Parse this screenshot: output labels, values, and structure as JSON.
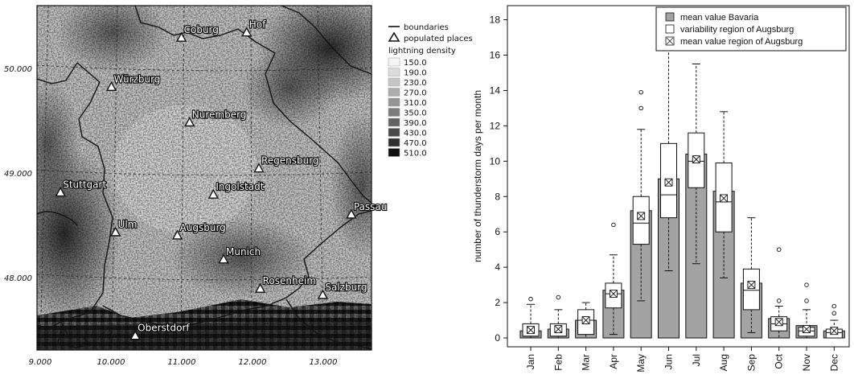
{
  "map": {
    "lon_ticks": [
      "9.000",
      "10.000",
      "11.000",
      "12.000",
      "13.000"
    ],
    "lat_ticks": [
      "50.000",
      "49.000",
      "48.000"
    ],
    "places": [
      {
        "name": "Coburg",
        "lon": 10.96,
        "lat": 50.26
      },
      {
        "name": "Hof",
        "lon": 11.92,
        "lat": 50.31
      },
      {
        "name": "Würzburg",
        "lon": 9.93,
        "lat": 49.79
      },
      {
        "name": "Nuremberg",
        "lon": 11.08,
        "lat": 49.45
      },
      {
        "name": "Regensburg",
        "lon": 12.1,
        "lat": 49.01
      },
      {
        "name": "Stuttgart",
        "lon": 9.18,
        "lat": 48.78
      },
      {
        "name": "Ingolstadt",
        "lon": 11.43,
        "lat": 48.76
      },
      {
        "name": "Passau",
        "lon": 13.46,
        "lat": 48.57
      },
      {
        "name": "Ulm",
        "lon": 9.99,
        "lat": 48.4
      },
      {
        "name": "Augsburg",
        "lon": 10.9,
        "lat": 48.37
      },
      {
        "name": "Munich",
        "lon": 11.58,
        "lat": 48.14
      },
      {
        "name": "Rosenheim",
        "lon": 12.12,
        "lat": 47.86
      },
      {
        "name": "Salzburg",
        "lon": 13.04,
        "lat": 47.8
      },
      {
        "name": "Oberstdorf",
        "lon": 10.28,
        "lat": 47.41
      }
    ],
    "legend": {
      "boundaries": "boundaries",
      "populated": "populated places",
      "density_title": "lightning density",
      "classes": [
        {
          "label": "150.0",
          "color": "#f5f5f5"
        },
        {
          "label": "190.0",
          "color": "#dcdcdc"
        },
        {
          "label": "230.0",
          "color": "#c6c6c6"
        },
        {
          "label": "270.0",
          "color": "#adadad"
        },
        {
          "label": "310.0",
          "color": "#949494"
        },
        {
          "label": "350.0",
          "color": "#7c7c7c"
        },
        {
          "label": "390.0",
          "color": "#626262"
        },
        {
          "label": "430.0",
          "color": "#494949"
        },
        {
          "label": "470.0",
          "color": "#303030"
        },
        {
          "label": "510.0",
          "color": "#101010"
        }
      ]
    }
  },
  "chart_data": {
    "type": "bar",
    "ylabel": "number of thunderstorm days per month",
    "ylim": [
      -0.5,
      18.8
    ],
    "yticks": [
      0,
      2,
      4,
      6,
      8,
      10,
      12,
      14,
      16,
      18
    ],
    "categories": [
      "Jan",
      "Feb",
      "Mar",
      "Apr",
      "May",
      "Jun",
      "Jul",
      "Aug",
      "Sep",
      "Oct",
      "Nov",
      "Dec"
    ],
    "legend": [
      "mean value Bavaria",
      "variability region of Augsburg",
      "mean value region of Augsburg"
    ],
    "legend_position": "top-right",
    "bar_color": "#a3a3a3",
    "series": [
      {
        "name": "mean value Bavaria",
        "values": [
          0.4,
          0.5,
          1.0,
          2.7,
          7.2,
          9.0,
          10.4,
          8.3,
          3.1,
          1.1,
          0.7,
          0.4
        ]
      },
      {
        "name": "mean value region of Augsburg",
        "values": [
          0.45,
          0.5,
          1.0,
          2.5,
          6.9,
          8.8,
          10.1,
          7.9,
          3.0,
          0.9,
          0.5,
          0.4
        ]
      }
    ],
    "boxes": [
      {
        "q1": 0.1,
        "median": 0.1,
        "q3": 0.8,
        "whisker_low": 0.0,
        "whisker_high": 1.9,
        "outliers": [
          2.2
        ]
      },
      {
        "q1": 0.1,
        "median": 0.1,
        "q3": 0.8,
        "whisker_low": 0.0,
        "whisker_high": 1.6,
        "outliers": [
          2.3
        ]
      },
      {
        "q1": 0.2,
        "median": 1.0,
        "q3": 1.6,
        "whisker_low": 0.0,
        "whisker_high": 2.0,
        "outliers": []
      },
      {
        "q1": 1.7,
        "median": 2.5,
        "q3": 3.1,
        "whisker_low": 0.2,
        "whisker_high": 4.7,
        "outliers": [
          6.4
        ]
      },
      {
        "q1": 5.3,
        "median": 6.5,
        "q3": 8.0,
        "whisker_low": 2.1,
        "whisker_high": 11.8,
        "outliers": [
          13.0,
          13.9
        ]
      },
      {
        "q1": 6.8,
        "median": 8.1,
        "q3": 11.0,
        "whisker_low": 3.8,
        "whisker_high": 16.5,
        "outliers": []
      },
      {
        "q1": 8.5,
        "median": 10.0,
        "q3": 11.6,
        "whisker_low": 4.2,
        "whisker_high": 15.5,
        "outliers": [
          16.9
        ]
      },
      {
        "q1": 6.0,
        "median": 7.7,
        "q3": 9.9,
        "whisker_low": 3.4,
        "whisker_high": 12.8,
        "outliers": []
      },
      {
        "q1": 1.6,
        "median": 2.7,
        "q3": 3.9,
        "whisker_low": 0.3,
        "whisker_high": 6.8,
        "outliers": []
      },
      {
        "q1": 0.4,
        "median": 0.8,
        "q3": 1.2,
        "whisker_low": 0.0,
        "whisker_high": 1.8,
        "outliers": [
          2.1,
          5.0
        ]
      },
      {
        "q1": 0.1,
        "median": 0.4,
        "q3": 0.6,
        "whisker_low": 0.0,
        "whisker_high": 1.6,
        "outliers": [
          2.1,
          3.0
        ]
      },
      {
        "q1": 0.0,
        "median": 0.3,
        "q3": 0.5,
        "whisker_low": 0.0,
        "whisker_high": 1.0,
        "outliers": [
          1.4,
          1.8
        ]
      }
    ]
  }
}
